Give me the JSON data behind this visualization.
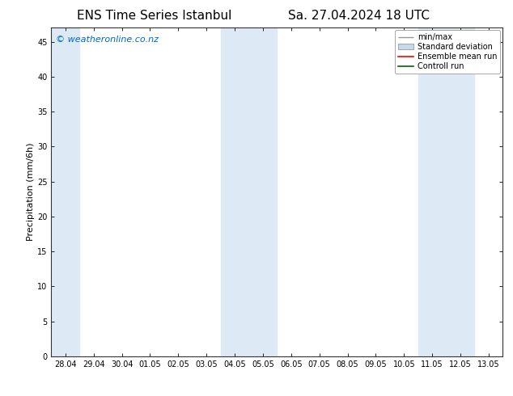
{
  "title_left": "ENS Time Series Istanbul",
  "title_right": "Sa. 27.04.2024 18 UTC",
  "ylabel": "Precipitation (mm/6h)",
  "watermark": "© weatheronline.co.nz",
  "watermark_color": "#0066cc",
  "xlim_start": "28.04",
  "xlim_end": "13.05",
  "ylim": [
    0,
    47
  ],
  "yticks": [
    0,
    5,
    10,
    15,
    20,
    25,
    30,
    35,
    40,
    45
  ],
  "xtick_labels": [
    "28.04",
    "29.04",
    "30.04",
    "01.05",
    "02.05",
    "03.05",
    "04.05",
    "05.05",
    "06.05",
    "07.05",
    "08.05",
    "09.05",
    "10.05",
    "11.05",
    "12.05",
    "13.05"
  ],
  "background_color": "#ffffff",
  "plot_bg_color": "#ffffff",
  "shaded_regions": [
    {
      "xstart": 0,
      "xend": 1,
      "color": "#ddeaf6"
    },
    {
      "xstart": 6,
      "xend": 8,
      "color": "#ddeaf6"
    },
    {
      "xstart": 13,
      "xend": 15,
      "color": "#ddeaf6"
    }
  ],
  "legend_entries": [
    {
      "label": "min/max",
      "color": "#aaaaaa",
      "style": "errorbar"
    },
    {
      "label": "Standard deviation",
      "color": "#c5d8ec",
      "style": "fill"
    },
    {
      "label": "Ensemble mean run",
      "color": "#ff0000",
      "style": "line"
    },
    {
      "label": "Controll run",
      "color": "#006600",
      "style": "line"
    }
  ],
  "title_fontsize": 11,
  "tick_label_fontsize": 7,
  "ylabel_fontsize": 8,
  "legend_fontsize": 7,
  "watermark_fontsize": 8
}
